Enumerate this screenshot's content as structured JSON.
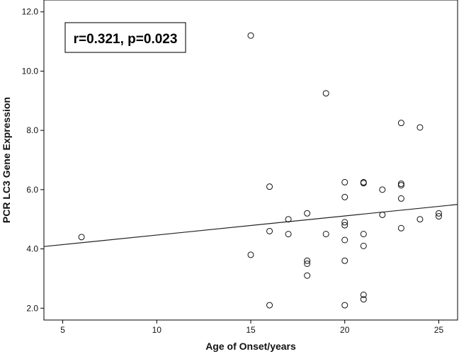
{
  "chart_data": {
    "type": "scatter",
    "title": "",
    "xlabel": "Age of Onset/years",
    "ylabel": "PCR LC3 Gene Expression",
    "xlim": [
      4,
      26
    ],
    "ylim": [
      1.6,
      12.4
    ],
    "xticks": [
      5,
      10,
      15,
      20,
      25
    ],
    "yticks": [
      2.0,
      4.0,
      6.0,
      8.0,
      10.0,
      12.0
    ],
    "xtick_labels": [
      "5",
      "10",
      "15",
      "20",
      "25"
    ],
    "ytick_labels": [
      "2.0",
      "4.0",
      "6.0",
      "8.0",
      "10.0",
      "12.0"
    ],
    "grid": false,
    "annotation": "r=0.321, p=0.023",
    "fit_line": {
      "x": [
        4,
        26
      ],
      "y": [
        4.08,
        5.5
      ]
    },
    "points": [
      {
        "x": 6,
        "y": 4.4
      },
      {
        "x": 15,
        "y": 11.2
      },
      {
        "x": 15,
        "y": 3.8
      },
      {
        "x": 16,
        "y": 6.1
      },
      {
        "x": 16,
        "y": 4.6
      },
      {
        "x": 16,
        "y": 2.1
      },
      {
        "x": 17,
        "y": 5.0
      },
      {
        "x": 17,
        "y": 4.5
      },
      {
        "x": 18,
        "y": 5.2
      },
      {
        "x": 18,
        "y": 3.6
      },
      {
        "x": 18,
        "y": 3.5
      },
      {
        "x": 18,
        "y": 3.1
      },
      {
        "x": 19,
        "y": 9.25
      },
      {
        "x": 19,
        "y": 4.5
      },
      {
        "x": 20,
        "y": 6.25
      },
      {
        "x": 20,
        "y": 5.75
      },
      {
        "x": 20,
        "y": 4.9
      },
      {
        "x": 20,
        "y": 4.8
      },
      {
        "x": 20,
        "y": 4.3
      },
      {
        "x": 20,
        "y": 3.6
      },
      {
        "x": 20,
        "y": 2.1
      },
      {
        "x": 21,
        "y": 6.25
      },
      {
        "x": 21,
        "y": 6.22
      },
      {
        "x": 21,
        "y": 4.5
      },
      {
        "x": 21,
        "y": 4.1
      },
      {
        "x": 21,
        "y": 2.45
      },
      {
        "x": 21,
        "y": 2.3
      },
      {
        "x": 22,
        "y": 6.0
      },
      {
        "x": 22,
        "y": 5.15
      },
      {
        "x": 23,
        "y": 8.25
      },
      {
        "x": 23,
        "y": 6.2
      },
      {
        "x": 23,
        "y": 6.15
      },
      {
        "x": 23,
        "y": 5.7
      },
      {
        "x": 23,
        "y": 4.7
      },
      {
        "x": 24,
        "y": 8.1
      },
      {
        "x": 24,
        "y": 5.0
      },
      {
        "x": 25,
        "y": 5.2
      },
      {
        "x": 25,
        "y": 5.1
      }
    ]
  }
}
